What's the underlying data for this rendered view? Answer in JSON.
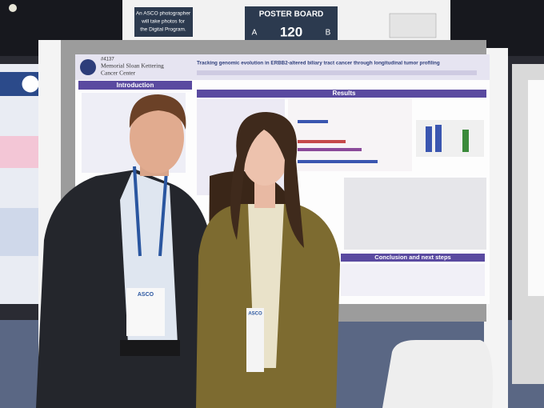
{
  "sign": {
    "notice": [
      "An ASCO photographer",
      "will take photos for",
      "the Digital Program."
    ],
    "label": "POSTER BOARD",
    "side_a": "A",
    "number": "120",
    "side_b": "B"
  },
  "poster": {
    "number": "#4137",
    "institution": [
      "Memorial Sloan Kettering",
      "Cancer Center"
    ],
    "title": "Tracking genomic evolution in ERBB2-altered biliary tract cancer through longitudinal tumor profiling",
    "sections": [
      "Introduction",
      "Results",
      "Conclusion and next steps"
    ]
  },
  "badges": [
    "ASCO",
    "ASCO"
  ]
}
